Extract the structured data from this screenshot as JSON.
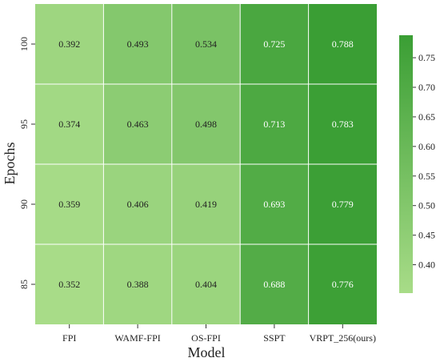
{
  "chart_data": {
    "type": "heatmap",
    "xlabel": "Model",
    "ylabel": "Epochs",
    "x_categories": [
      "FPI",
      "WAMF-FPI",
      "OS-FPI",
      "SSPT",
      "VRPT_256(ours)"
    ],
    "y_categories": [
      "100",
      "95",
      "90",
      "85"
    ],
    "values": [
      [
        0.392,
        0.493,
        0.534,
        0.725,
        0.788
      ],
      [
        0.374,
        0.463,
        0.498,
        0.713,
        0.783
      ],
      [
        0.359,
        0.406,
        0.419,
        0.693,
        0.779
      ],
      [
        0.352,
        0.388,
        0.404,
        0.688,
        0.776
      ]
    ],
    "value_format": "3 decimals",
    "colorbar": {
      "min": 0.352,
      "max": 0.788,
      "ticks": [
        "0.40",
        "0.45",
        "0.50",
        "0.55",
        "0.60",
        "0.65",
        "0.70",
        "0.75"
      ],
      "color_low": "#a8dc88",
      "color_high": "#3a9e34"
    },
    "grid": true,
    "grid_color": "#ffffff",
    "annotation_dark_threshold": 0.6,
    "annotation_light_color": "#ffffff",
    "annotation_dark_color": "#222222"
  }
}
